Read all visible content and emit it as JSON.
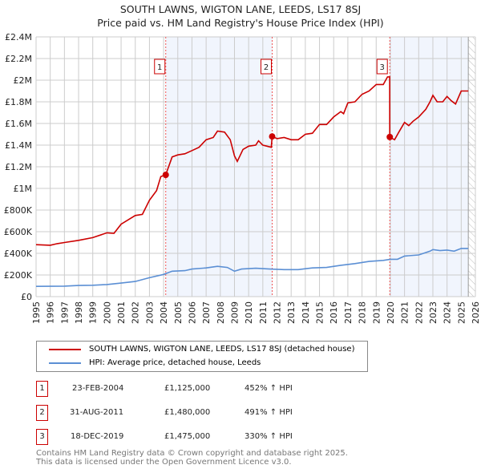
{
  "chart_data": {
    "type": "line",
    "title": "SOUTH LAWNS, WIGTON LANE, LEEDS, LS17 8SJ",
    "subtitle": "Price paid vs. HM Land Registry's House Price Index (HPI)",
    "xlim": [
      1995,
      2026
    ],
    "ylim": [
      0,
      2400000
    ],
    "yticks": [
      0,
      200000,
      400000,
      600000,
      800000,
      1000000,
      1200000,
      1400000,
      1600000,
      1800000,
      2000000,
      2200000,
      2400000
    ],
    "ytick_labels": [
      "£0",
      "£200K",
      "£400K",
      "£600K",
      "£800K",
      "£1M",
      "£1.2M",
      "£1.4M",
      "£1.6M",
      "£1.8M",
      "£2M",
      "£2.2M",
      "£2.4M"
    ],
    "xticks": [
      1995,
      1996,
      1997,
      1998,
      1999,
      2000,
      2001,
      2002,
      2003,
      2004,
      2005,
      2006,
      2007,
      2008,
      2009,
      2010,
      2011,
      2012,
      2013,
      2014,
      2015,
      2016,
      2017,
      2018,
      2019,
      2020,
      2021,
      2022,
      2023,
      2024,
      2025,
      2026
    ],
    "grid": true,
    "series": [
      {
        "name": "SOUTH LAWNS, WIGTON LANE, LEEDS, LS17 8SJ (detached house)",
        "color": "#cc0000",
        "x": [
          1995,
          1996,
          1996.5,
          1997,
          1998,
          1999,
          2000,
          2000.5,
          2001,
          2002,
          2002.5,
          2003,
          2003.5,
          2003.8,
          2004.15,
          2004.6,
          2005,
          2005.5,
          2006,
          2006.5,
          2007,
          2007.5,
          2007.8,
          2008.3,
          2008.7,
          2009,
          2009.2,
          2009.6,
          2010,
          2010.5,
          2010.7,
          2011,
          2011.6,
          2011.66,
          2012,
          2012.5,
          2013,
          2013.5,
          2014,
          2014.5,
          2015,
          2015.5,
          2016,
          2016.5,
          2016.7,
          2017,
          2017.5,
          2018,
          2018.5,
          2019,
          2019.5,
          2019.8,
          2019.95,
          2019.96,
          2020.3,
          2020.6,
          2021,
          2021.3,
          2021.6,
          2022,
          2022.5,
          2022.8,
          2023,
          2023.3,
          2023.7,
          2024,
          2024.3,
          2024.6,
          2025,
          2025.5
        ],
        "y": [
          480000,
          475000,
          490000,
          500000,
          520000,
          545000,
          590000,
          585000,
          670000,
          750000,
          760000,
          890000,
          980000,
          1110000,
          1125000,
          1290000,
          1310000,
          1320000,
          1350000,
          1380000,
          1450000,
          1470000,
          1530000,
          1520000,
          1450000,
          1300000,
          1250000,
          1360000,
          1390000,
          1400000,
          1440000,
          1400000,
          1380000,
          1480000,
          1460000,
          1470000,
          1450000,
          1450000,
          1500000,
          1510000,
          1590000,
          1590000,
          1660000,
          1710000,
          1690000,
          1790000,
          1800000,
          1870000,
          1900000,
          1960000,
          1960000,
          2030000,
          2030000,
          1475000,
          1450000,
          1520000,
          1610000,
          1580000,
          1620000,
          1660000,
          1730000,
          1800000,
          1860000,
          1800000,
          1800000,
          1850000,
          1810000,
          1780000,
          1900000,
          1900000
        ]
      },
      {
        "name": "HPI: Average price, detached house, Leeds",
        "color": "#5b8fd4",
        "x": [
          1995,
          1997,
          1998,
          1999,
          2000,
          2001,
          2002,
          2003,
          2004,
          2004.6,
          2005.5,
          2006,
          2007,
          2007.8,
          2008.5,
          2009,
          2009.5,
          2010.5,
          2011.5,
          2012.5,
          2013.5,
          2014.5,
          2015.5,
          2016.5,
          2017.5,
          2018.5,
          2019.5,
          2020,
          2020.5,
          2021,
          2022,
          2022.8,
          2023,
          2023.5,
          2024,
          2024.5,
          2025,
          2025.5
        ],
        "y": [
          95000,
          97000,
          103000,
          105000,
          112000,
          125000,
          140000,
          175000,
          205000,
          235000,
          240000,
          255000,
          265000,
          280000,
          270000,
          235000,
          255000,
          262000,
          255000,
          250000,
          250000,
          265000,
          270000,
          290000,
          305000,
          325000,
          335000,
          345000,
          345000,
          375000,
          385000,
          420000,
          435000,
          425000,
          430000,
          420000,
          445000,
          445000
        ]
      }
    ],
    "sales": [
      {
        "label": "1",
        "x": 2004.15,
        "date": "23-FEB-2004",
        "price": 1125000,
        "price_text": "£1,125,000",
        "hpi_text": "452% ↑ HPI"
      },
      {
        "label": "2",
        "x": 2011.66,
        "date": "31-AUG-2011",
        "price": 1480000,
        "price_text": "£1,480,000",
        "hpi_text": "491% ↑ HPI"
      },
      {
        "label": "3",
        "x": 2019.96,
        "date": "18-DEC-2019",
        "price": 1475000,
        "price_text": "£1,475,000",
        "hpi_text": "330% ↑ HPI"
      }
    ],
    "shaded_ranges": [
      [
        2004.15,
        2011.66
      ],
      [
        2019.96,
        2025.5
      ]
    ],
    "forecast_hatch_from": 2025.5,
    "legend_position": "below"
  },
  "footer": {
    "line1": "Contains HM Land Registry data © Crown copyright and database right 2025.",
    "line2": "This data is licensed under the Open Government Licence v3.0."
  }
}
